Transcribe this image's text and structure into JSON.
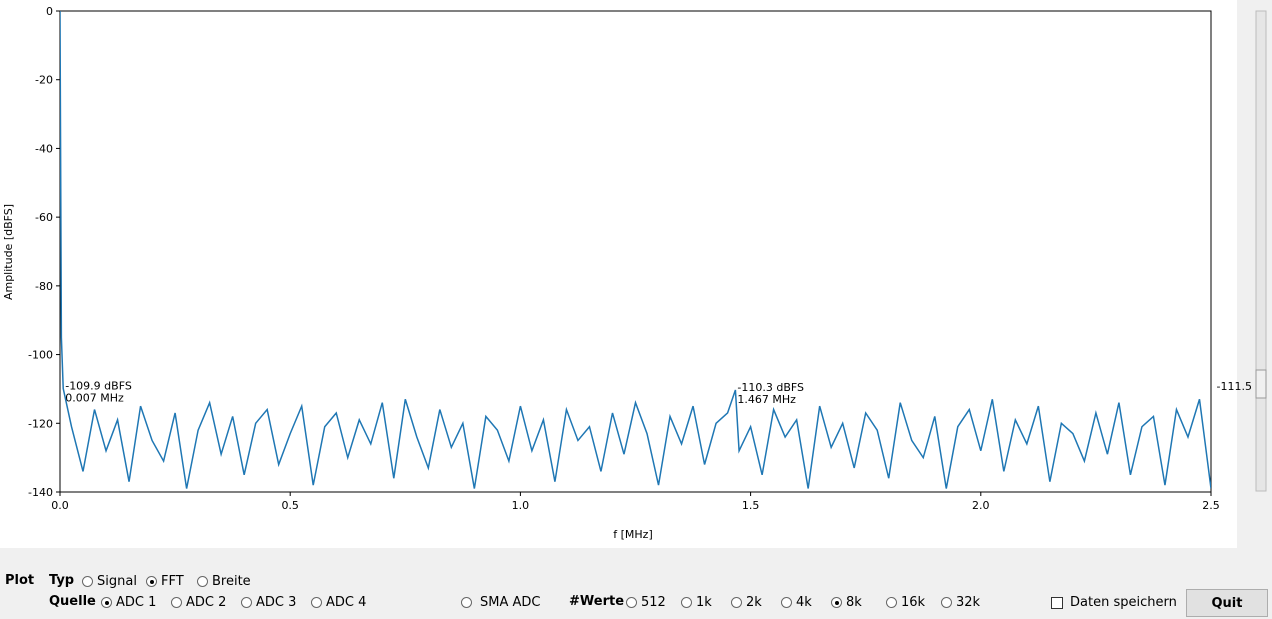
{
  "chart_data": {
    "type": "line",
    "xlabel": "f [MHz]",
    "ylabel": "Amplitude [dBFS]",
    "color": "#1f77b4",
    "xlim": [
      0,
      2.5
    ],
    "ylim": [
      -140,
      0
    ],
    "xticks": [
      {
        "value": 0,
        "label": "0.0"
      },
      0.5,
      {
        "value": 1,
        "label": "1.0"
      },
      1.5,
      {
        "value": 2,
        "label": "2.0"
      },
      2.5
    ],
    "yticks": [
      -140,
      -120,
      -100,
      -80,
      -60,
      -40,
      -20,
      0
    ],
    "x": [
      0,
      0.003,
      0.007,
      0.025,
      0.05,
      0.075,
      0.1,
      0.125,
      0.15,
      0.175,
      0.2,
      0.225,
      0.25,
      0.275,
      0.3,
      0.325,
      0.35,
      0.375,
      0.4,
      0.425,
      0.45,
      0.475,
      0.5,
      0.525,
      0.55,
      0.575,
      0.6,
      0.625,
      0.65,
      0.675,
      0.7,
      0.725,
      0.75,
      0.775,
      0.8,
      0.825,
      0.85,
      0.875,
      0.9,
      0.925,
      0.95,
      0.975,
      1.0,
      1.025,
      1.05,
      1.075,
      1.1,
      1.125,
      1.15,
      1.175,
      1.2,
      1.225,
      1.25,
      1.275,
      1.3,
      1.325,
      1.35,
      1.375,
      1.4,
      1.425,
      1.45,
      1.467,
      1.475,
      1.5,
      1.525,
      1.55,
      1.575,
      1.6,
      1.625,
      1.65,
      1.675,
      1.7,
      1.725,
      1.75,
      1.775,
      1.8,
      1.825,
      1.85,
      1.875,
      1.9,
      1.925,
      1.95,
      1.975,
      2.0,
      2.025,
      2.05,
      2.075,
      2.1,
      2.125,
      2.15,
      2.175,
      2.2,
      2.225,
      2.25,
      2.275,
      2.3,
      2.325,
      2.35,
      2.375,
      2.4,
      2.425,
      2.45,
      2.475,
      2.5
    ],
    "values": [
      0,
      -95,
      -109.9,
      -121,
      -134,
      -116,
      -128,
      -119,
      -137,
      -115,
      -125,
      -131,
      -117,
      -139,
      -122,
      -114,
      -129,
      -118,
      -135,
      -120,
      -116,
      -132,
      -123,
      -115,
      -138,
      -121,
      -117,
      -130,
      -119,
      -126,
      -114,
      -136,
      -113,
      -124,
      -133,
      -116,
      -127,
      -120,
      -139,
      -118,
      -122,
      -131,
      -115,
      -128,
      -119,
      -137,
      -116,
      -125,
      -121,
      -134,
      -117,
      -129,
      -114,
      -123,
      -138,
      -118,
      -126,
      -115,
      -132,
      -120,
      -117,
      -110.3,
      -128,
      -121,
      -135,
      -116,
      -124,
      -119,
      -139,
      -115,
      -127,
      -120,
      -133,
      -117,
      -122,
      -136,
      -114,
      -125,
      -130,
      -118,
      -139,
      -121,
      -116,
      -128,
      -113,
      -134,
      -119,
      -126,
      -115,
      -137,
      -120,
      -123,
      -131,
      -117,
      -129,
      -114,
      -135,
      -121,
      -118,
      -138,
      -116,
      -124,
      -113,
      -139
    ],
    "annotations": [
      {
        "x": 0.007,
        "y": -109.9,
        "label": "-109.9 dBFS",
        "sublabel": "0.007 MHz"
      },
      {
        "x": 1.467,
        "y": -110.3,
        "label": "-110.3 dBFS",
        "sublabel": "1.467 MHz"
      }
    ]
  },
  "slider": {
    "value": -111.5
  },
  "controls": {
    "plot_label": "Plot",
    "typ": {
      "label": "Typ",
      "options": [
        "Signal",
        "FFT",
        "Breite"
      ],
      "selected": 1
    },
    "quelle": {
      "label": "Quelle",
      "options": [
        "ADC 1",
        "ADC 2",
        "ADC 3",
        "ADC 4"
      ],
      "selected": 0
    },
    "sma": {
      "label": "SMA ADC",
      "checked": false
    },
    "werte": {
      "label": "#Werte",
      "options": [
        "512",
        "1k",
        "2k",
        "4k",
        "8k",
        "16k",
        "32k"
      ],
      "selected": 4
    },
    "save": {
      "label": "Daten speichern",
      "checked": false
    },
    "quit": "Quit"
  }
}
